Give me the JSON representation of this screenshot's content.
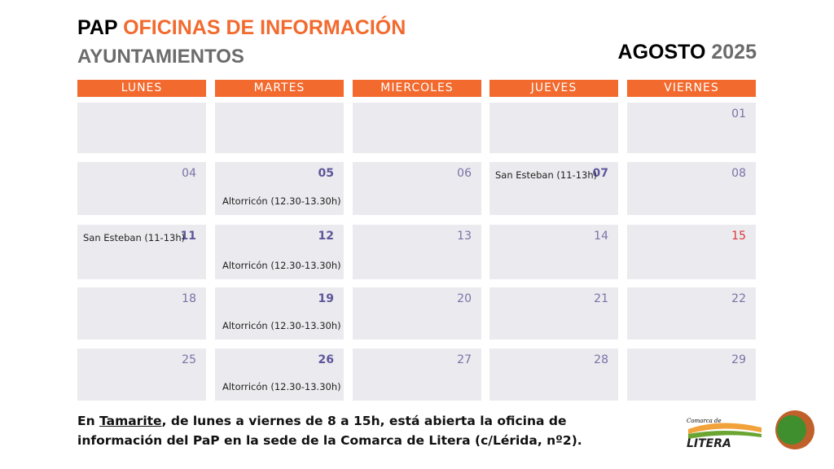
{
  "header": {
    "title_lead": "PAP",
    "title_main": "OFICINAS DE INFORMACIÓN",
    "subtitle": "AYUNTAMIENTOS",
    "month": "AGOSTO",
    "year": "2025"
  },
  "weekdays": [
    "LUNES",
    "MARTES",
    "MIERCOLES",
    "JUEVES",
    "VIERNES"
  ],
  "weeks": [
    [
      null,
      null,
      null,
      null,
      {
        "day": "01"
      }
    ],
    [
      {
        "day": "04"
      },
      {
        "day": "05",
        "note": "Altorricón (12.30-13.30h)",
        "note_pos": "below"
      },
      {
        "day": "06"
      },
      {
        "day": "07",
        "note": "San Esteban (11-13h)",
        "note_pos": "inline"
      },
      {
        "day": "08"
      }
    ],
    [
      {
        "day": "11",
        "note": "San Esteban (11-13h)",
        "note_pos": "inline"
      },
      {
        "day": "12",
        "note": "Altorricón (12.30-13.30h)",
        "note_pos": "below"
      },
      {
        "day": "13"
      },
      {
        "day": "14"
      },
      {
        "day": "15",
        "holiday": true
      }
    ],
    [
      {
        "day": "18"
      },
      {
        "day": "19",
        "note": "Altorricón (12.30-13.30h)",
        "note_pos": "below"
      },
      {
        "day": "20"
      },
      {
        "day": "21"
      },
      {
        "day": "22"
      }
    ],
    [
      {
        "day": "25"
      },
      {
        "day": "26",
        "note": "Altorricón (12.30-13.30h)",
        "note_pos": "below"
      },
      {
        "day": "27"
      },
      {
        "day": "28"
      },
      {
        "day": "29"
      }
    ]
  ],
  "footer": {
    "before": "En ",
    "link": "Tamarite",
    "after": ", de lunes a viernes de 8 a 15h, está abierta la oficina de información del PaP en la sede de la Comarca de Litera (c/Lérida, nº2)."
  },
  "logo": {
    "small": "Comarca de",
    "name": "LITERA"
  }
}
